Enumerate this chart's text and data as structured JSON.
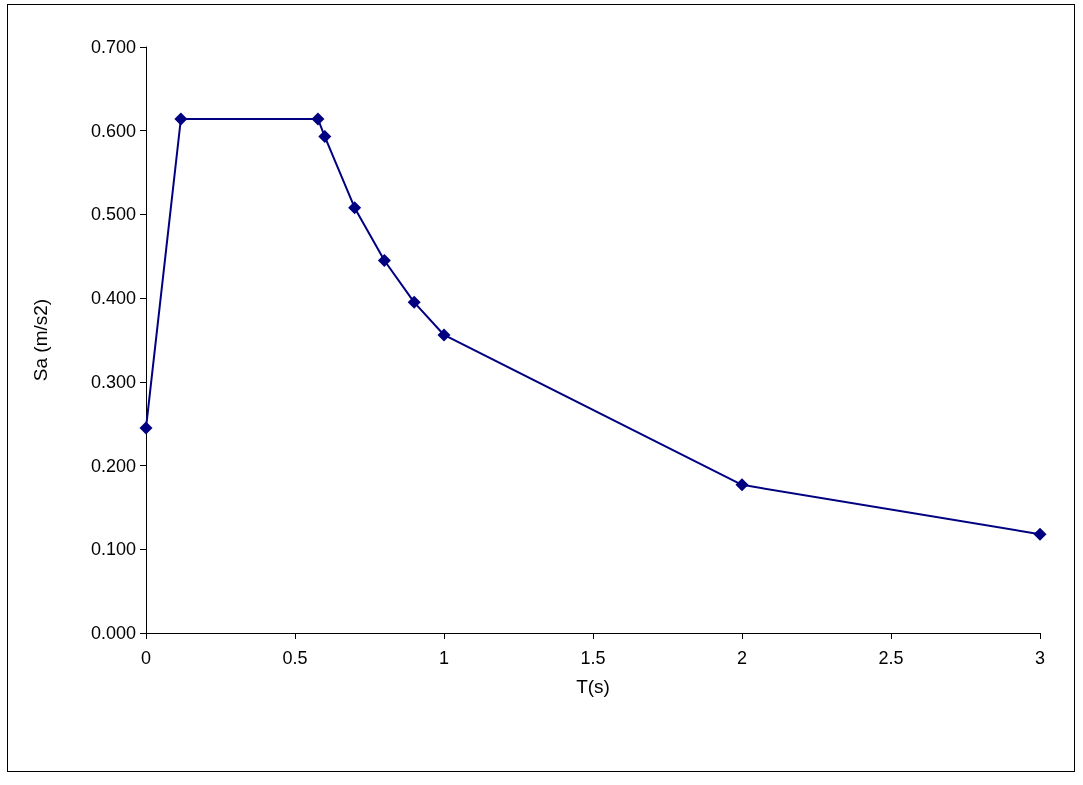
{
  "chart_data": {
    "type": "line",
    "xlabel": "T(s)",
    "ylabel": "Sa (m/s2)",
    "x": [
      0,
      0.117,
      0.577,
      0.6,
      0.7,
      0.8,
      0.9,
      1.0,
      2.0,
      3.0
    ],
    "series": [
      {
        "color": "#000080",
        "values": [
          0.245,
          0.614,
          0.614,
          0.593,
          0.508,
          0.445,
          0.395,
          0.356,
          0.177,
          0.118
        ]
      }
    ],
    "xlim": [
      0,
      3
    ],
    "xticks": [
      0,
      0.5,
      1,
      1.5,
      2,
      2.5,
      3
    ],
    "ylim": [
      0,
      0.7
    ],
    "yticks": [
      {
        "value": 0,
        "label": "0.000"
      },
      {
        "value": 0.1,
        "label": "0.100"
      },
      {
        "value": 0.2,
        "label": "0.200"
      },
      {
        "value": 0.3,
        "label": "0.300"
      },
      {
        "value": 0.4,
        "label": "0.400"
      },
      {
        "value": 0.5,
        "label": "0.500"
      },
      {
        "value": 0.6,
        "label": "0.600"
      },
      {
        "value": 0.7,
        "label": "0.700"
      }
    ],
    "grid": false,
    "marker": "diamond",
    "line_style": "solid"
  }
}
